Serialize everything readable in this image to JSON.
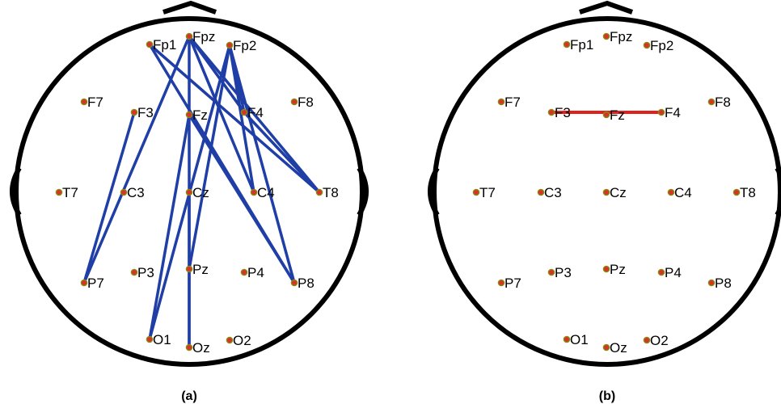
{
  "panels": [
    {
      "id": "a",
      "caption": "(a)",
      "link_color": "#1f3ea6",
      "electrodes": [
        "Fp1",
        "Fpz",
        "Fp2",
        "F7",
        "F3",
        "Fz",
        "F4",
        "F8",
        "T7",
        "C3",
        "Cz",
        "C4",
        "T8",
        "P7",
        "P3",
        "Pz",
        "P4",
        "P8",
        "O1",
        "Oz",
        "O2"
      ],
      "connections": [
        [
          "Fp1",
          "T8"
        ],
        [
          "Fp1",
          "P8"
        ],
        [
          "Fpz",
          "Oz"
        ],
        [
          "Fpz",
          "P7"
        ],
        [
          "Fpz",
          "C4"
        ],
        [
          "Fpz",
          "T8"
        ],
        [
          "Fpz",
          "F4"
        ],
        [
          "Fp2",
          "O1"
        ],
        [
          "Fp2",
          "Pz"
        ],
        [
          "Fp2",
          "C4"
        ],
        [
          "Fp2",
          "P8"
        ],
        [
          "Fp2",
          "F4"
        ],
        [
          "F3",
          "P7"
        ],
        [
          "Fz",
          "O1"
        ],
        [
          "Fz",
          "P8"
        ],
        [
          "F4",
          "T8"
        ],
        [
          "Cz",
          "Oz"
        ]
      ]
    },
    {
      "id": "b",
      "caption": "(b)",
      "link_color": "#e0201b",
      "electrodes": [
        "Fp1",
        "Fpz",
        "Fp2",
        "F7",
        "F3",
        "Fz",
        "F4",
        "F8",
        "T7",
        "C3",
        "Cz",
        "C4",
        "T8",
        "P7",
        "P3",
        "Pz",
        "P4",
        "P8",
        "O1",
        "Oz",
        "O2"
      ],
      "connections": [
        [
          "F3",
          "F4"
        ]
      ]
    }
  ],
  "colors": {
    "head_outline": "#000000",
    "electrode_fill": "#d9312b",
    "electrode_ring": "#8a8a10"
  }
}
